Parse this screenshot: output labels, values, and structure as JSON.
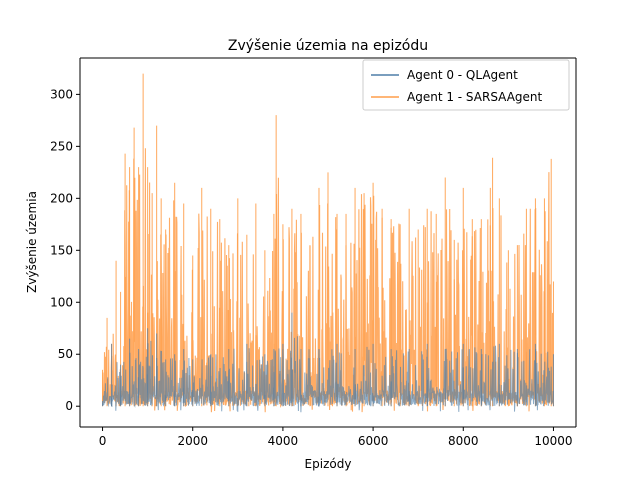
{
  "chart_data": {
    "type": "line",
    "title": "Zvýšenie územia na epizódu",
    "xlabel": "Epizódy",
    "ylabel": "Zvýšenie územia",
    "xlim": [
      -500,
      10500
    ],
    "ylim": [
      -20,
      335
    ],
    "xticks": [
      0,
      2000,
      4000,
      6000,
      8000,
      10000
    ],
    "yticks": [
      0,
      50,
      100,
      150,
      200,
      250,
      300
    ],
    "legend_position": "upper right",
    "grid": false,
    "series": [
      {
        "name": "Agent 0 - QLAgent",
        "color": "#4f7ea8",
        "x": [
          0,
          200,
          400,
          600,
          800,
          1000,
          1200,
          1400,
          1600,
          1800,
          2000,
          2400,
          2800,
          3200,
          3600,
          3800,
          4000,
          4200,
          4400,
          4800,
          5200,
          5600,
          6000,
          6400,
          6800,
          7200,
          7600,
          8000,
          8400,
          8800,
          9200,
          9600,
          10000
        ],
        "values": [
          5,
          60,
          40,
          65,
          55,
          75,
          70,
          45,
          50,
          55,
          45,
          50,
          55,
          60,
          50,
          55,
          60,
          90,
          55,
          55,
          60,
          55,
          60,
          55,
          55,
          60,
          55,
          60,
          55,
          60,
          55,
          60,
          50
        ]
      },
      {
        "name": "Agent 1 - SARSAAgent",
        "color": "#ff9e4a",
        "x": [
          0,
          100,
          200,
          300,
          400,
          500,
          600,
          700,
          800,
          900,
          1000,
          1100,
          1200,
          1300,
          1400,
          1600,
          1800,
          2000,
          2200,
          2400,
          2600,
          2800,
          3000,
          3200,
          3400,
          3600,
          3800,
          3850,
          4000,
          4200,
          4400,
          4600,
          4800,
          5000,
          5200,
          5400,
          5600,
          5800,
          6000,
          6200,
          6400,
          6600,
          6800,
          7000,
          7200,
          7400,
          7600,
          7800,
          8000,
          8200,
          8400,
          8600,
          8650,
          8800,
          9000,
          9200,
          9400,
          9600,
          9800,
          9950,
          10000
        ],
        "values": [
          35,
          85,
          60,
          140,
          110,
          243,
          230,
          268,
          230,
          320,
          230,
          205,
          270,
          200,
          170,
          215,
          195,
          145,
          210,
          190,
          180,
          155,
          200,
          165,
          195,
          150,
          185,
          280,
          175,
          190,
          185,
          155,
          210,
          225,
          185,
          185,
          210,
          205,
          215,
          190,
          180,
          175,
          190,
          170,
          190,
          185,
          220,
          160,
          210,
          180,
          180,
          210,
          239,
          200,
          150,
          155,
          190,
          200,
          200,
          238,
          120
        ]
      }
    ]
  }
}
